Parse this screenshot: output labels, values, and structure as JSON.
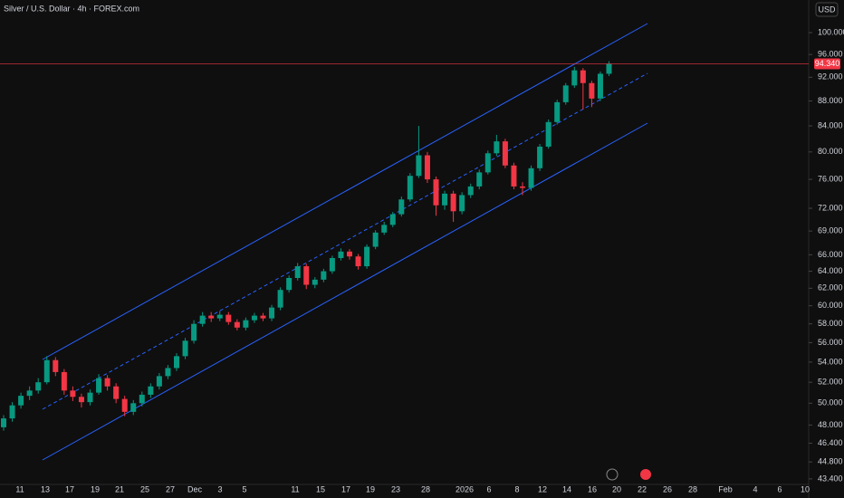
{
  "chart_data": {
    "type": "candlestick",
    "title": "Silver / U.S. Dollar · 4h · FOREX.com",
    "currency": "USD",
    "log_scale": true,
    "up_color": "#089981",
    "down_color": "#f23645",
    "ylim": [
      43.1,
      106.3
    ],
    "yticks": [
      {
        "value": 100,
        "label": "100.000"
      },
      {
        "value": 96,
        "label": "96.000"
      },
      {
        "value": 92,
        "label": "92.000"
      },
      {
        "value": 88,
        "label": "88.000"
      },
      {
        "value": 84,
        "label": "84.000"
      },
      {
        "value": 80,
        "label": "80.000"
      },
      {
        "value": 76,
        "label": "76.000"
      },
      {
        "value": 72,
        "label": "72.000"
      },
      {
        "value": 69,
        "label": "69.000"
      },
      {
        "value": 66,
        "label": "66.000"
      },
      {
        "value": 64,
        "label": "64.000"
      },
      {
        "value": 62,
        "label": "62.000"
      },
      {
        "value": 60,
        "label": "60.000"
      },
      {
        "value": 58,
        "label": "58.000"
      },
      {
        "value": 56,
        "label": "56.000"
      },
      {
        "value": 54,
        "label": "54.000"
      },
      {
        "value": 52,
        "label": "52.000"
      },
      {
        "value": 50,
        "label": "50.000"
      },
      {
        "value": 48,
        "label": "48.000"
      },
      {
        "value": 46.4,
        "label": "46.400"
      },
      {
        "value": 44.8,
        "label": "44.800"
      },
      {
        "value": 43.4,
        "label": "43.400"
      }
    ],
    "x_labels": [
      "11",
      "13",
      "17",
      "19",
      "21",
      "25",
      "27",
      "Dec",
      "3",
      "5",
      "11",
      "15",
      "17",
      "19",
      "23",
      "28",
      "2026",
      "6",
      "8",
      "12",
      "14",
      "16",
      "20",
      "22",
      "26",
      "28",
      "Feb",
      "4",
      "6",
      "10"
    ],
    "last_price": {
      "value": 94.34,
      "label": "94.340"
    },
    "candles": [
      [
        47.8,
        48.9,
        47.5,
        48.6
      ],
      [
        48.6,
        50.1,
        48.3,
        49.8
      ],
      [
        49.8,
        51.0,
        49.5,
        50.7
      ],
      [
        50.7,
        51.6,
        50.3,
        51.2
      ],
      [
        51.2,
        52.4,
        50.9,
        52.0
      ],
      [
        52.0,
        54.6,
        51.8,
        54.2
      ],
      [
        54.2,
        54.5,
        52.6,
        53.0
      ],
      [
        53.0,
        53.3,
        50.8,
        51.2
      ],
      [
        51.2,
        51.6,
        50.2,
        50.6
      ],
      [
        50.6,
        50.9,
        49.6,
        50.1
      ],
      [
        50.1,
        51.3,
        49.8,
        51.0
      ],
      [
        51.0,
        52.8,
        50.8,
        52.4
      ],
      [
        52.4,
        52.7,
        51.2,
        51.6
      ],
      [
        51.6,
        51.9,
        50.0,
        50.4
      ],
      [
        50.4,
        50.7,
        48.8,
        49.2
      ],
      [
        49.2,
        50.3,
        48.9,
        50.0
      ],
      [
        50.0,
        51.1,
        49.7,
        50.8
      ],
      [
        50.8,
        51.9,
        50.5,
        51.6
      ],
      [
        51.6,
        52.9,
        51.3,
        52.6
      ],
      [
        52.6,
        53.7,
        52.3,
        53.4
      ],
      [
        53.4,
        54.9,
        53.1,
        54.6
      ],
      [
        54.6,
        56.5,
        54.3,
        56.2
      ],
      [
        56.2,
        58.4,
        55.9,
        58.0
      ],
      [
        58.0,
        59.3,
        57.7,
        58.9
      ],
      [
        58.9,
        59.3,
        58.2,
        58.6
      ],
      [
        58.6,
        59.4,
        58.3,
        59.0
      ],
      [
        59.0,
        59.3,
        57.9,
        58.2
      ],
      [
        58.2,
        58.5,
        57.3,
        57.6
      ],
      [
        57.6,
        58.7,
        57.3,
        58.4
      ],
      [
        58.4,
        59.2,
        58.1,
        58.9
      ],
      [
        58.9,
        59.2,
        58.3,
        58.6
      ],
      [
        58.6,
        60.1,
        58.3,
        59.8
      ],
      [
        59.8,
        62.1,
        59.5,
        61.8
      ],
      [
        61.8,
        63.5,
        61.5,
        63.2
      ],
      [
        63.2,
        65.0,
        62.9,
        64.6
      ],
      [
        64.6,
        64.9,
        61.9,
        62.4
      ],
      [
        62.4,
        63.3,
        62.0,
        63.0
      ],
      [
        63.0,
        64.3,
        62.7,
        64.0
      ],
      [
        64.0,
        65.9,
        63.7,
        65.6
      ],
      [
        65.6,
        66.8,
        65.3,
        66.4
      ],
      [
        66.4,
        66.7,
        65.4,
        65.8
      ],
      [
        65.8,
        66.1,
        64.2,
        64.6
      ],
      [
        64.6,
        67.3,
        64.3,
        67.0
      ],
      [
        67.0,
        69.1,
        66.7,
        68.8
      ],
      [
        68.8,
        70.2,
        68.5,
        69.8
      ],
      [
        69.8,
        71.5,
        69.5,
        71.2
      ],
      [
        71.2,
        73.6,
        70.9,
        73.2
      ],
      [
        73.2,
        76.9,
        72.9,
        76.5
      ],
      [
        76.5,
        84.0,
        76.2,
        79.5
      ],
      [
        79.5,
        80.0,
        75.5,
        76.0
      ],
      [
        76.0,
        76.4,
        71.0,
        72.4
      ],
      [
        72.4,
        74.4,
        71.8,
        74.0
      ],
      [
        74.0,
        74.4,
        70.2,
        71.6
      ],
      [
        71.6,
        74.2,
        71.2,
        73.8
      ],
      [
        73.8,
        75.4,
        73.4,
        75.0
      ],
      [
        75.0,
        77.4,
        74.6,
        77.0
      ],
      [
        77.0,
        80.2,
        76.7,
        79.8
      ],
      [
        79.8,
        82.6,
        79.4,
        81.6
      ],
      [
        81.6,
        82.0,
        77.6,
        78.0
      ],
      [
        78.0,
        78.4,
        74.6,
        75.0
      ],
      [
        75.0,
        75.6,
        73.8,
        74.8
      ],
      [
        74.8,
        78.0,
        74.4,
        77.6
      ],
      [
        77.6,
        81.2,
        77.2,
        80.8
      ],
      [
        80.8,
        85.0,
        80.5,
        84.6
      ],
      [
        84.6,
        88.2,
        84.2,
        87.8
      ],
      [
        87.8,
        91.0,
        87.4,
        90.6
      ],
      [
        90.6,
        93.8,
        90.2,
        93.2
      ],
      [
        93.2,
        93.6,
        86.6,
        91.0
      ],
      [
        91.0,
        91.4,
        87.0,
        88.4
      ],
      [
        88.4,
        93.0,
        88.0,
        92.6
      ],
      [
        92.6,
        94.8,
        92.2,
        94.34
      ]
    ]
  }
}
